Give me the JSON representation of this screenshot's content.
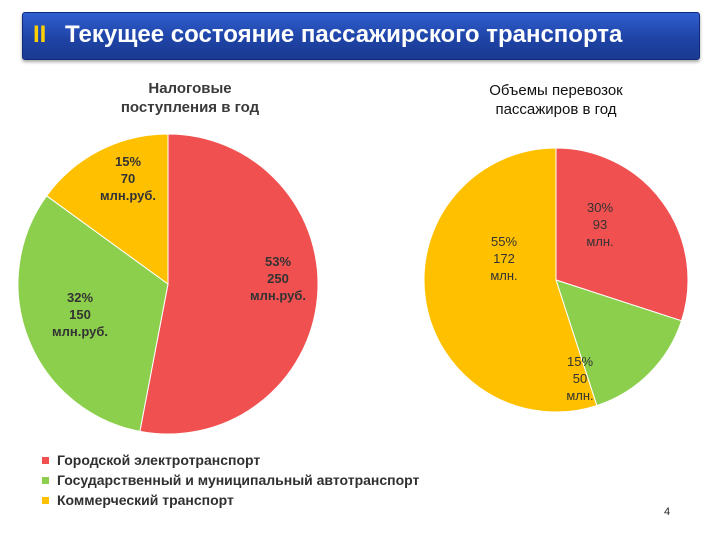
{
  "header": {
    "roman": "II",
    "title": "Текущее состояние пассажирского транспорта"
  },
  "colors": {
    "red": "#f05050",
    "green": "#8ccf4c",
    "yellow": "#ffc000"
  },
  "chart_data": [
    {
      "type": "pie",
      "title_lines": [
        "Налоговые",
        "поступления в год"
      ],
      "slices": [
        {
          "name": "Городской электротранспорт",
          "percent": 53,
          "labels": [
            "53%",
            "250",
            "млн.руб."
          ]
        },
        {
          "name": "Государственный и муниципальный автотранспорт",
          "percent": 32,
          "labels": [
            "32%",
            "150",
            "млн.руб."
          ]
        },
        {
          "name": "Коммерческий транспорт",
          "percent": 15,
          "labels": [
            "15%",
            "70",
            "млн.руб."
          ]
        }
      ]
    },
    {
      "type": "pie",
      "title_lines": [
        "Объемы перевозок",
        "пассажиров в год"
      ],
      "slices": [
        {
          "name": "Городской электротранспорт",
          "percent": 30,
          "labels": [
            "30%",
            "93",
            "млн."
          ]
        },
        {
          "name": "Государственный и муниципальный автотранспорт",
          "percent": 15,
          "labels": [
            "15%",
            "50",
            "млн."
          ]
        },
        {
          "name": "Коммерческий транспорт",
          "percent": 55,
          "labels": [
            "55%",
            "172",
            "млн."
          ]
        }
      ]
    }
  ],
  "legend": [
    {
      "label": "Городской электротранспорт",
      "color": "#f05050"
    },
    {
      "label": "Государственный и муниципальный автотранспорт",
      "color": "#8ccf4c"
    },
    {
      "label": "Коммерческий транспорт",
      "color": "#ffc000"
    }
  ],
  "page_number": "4"
}
